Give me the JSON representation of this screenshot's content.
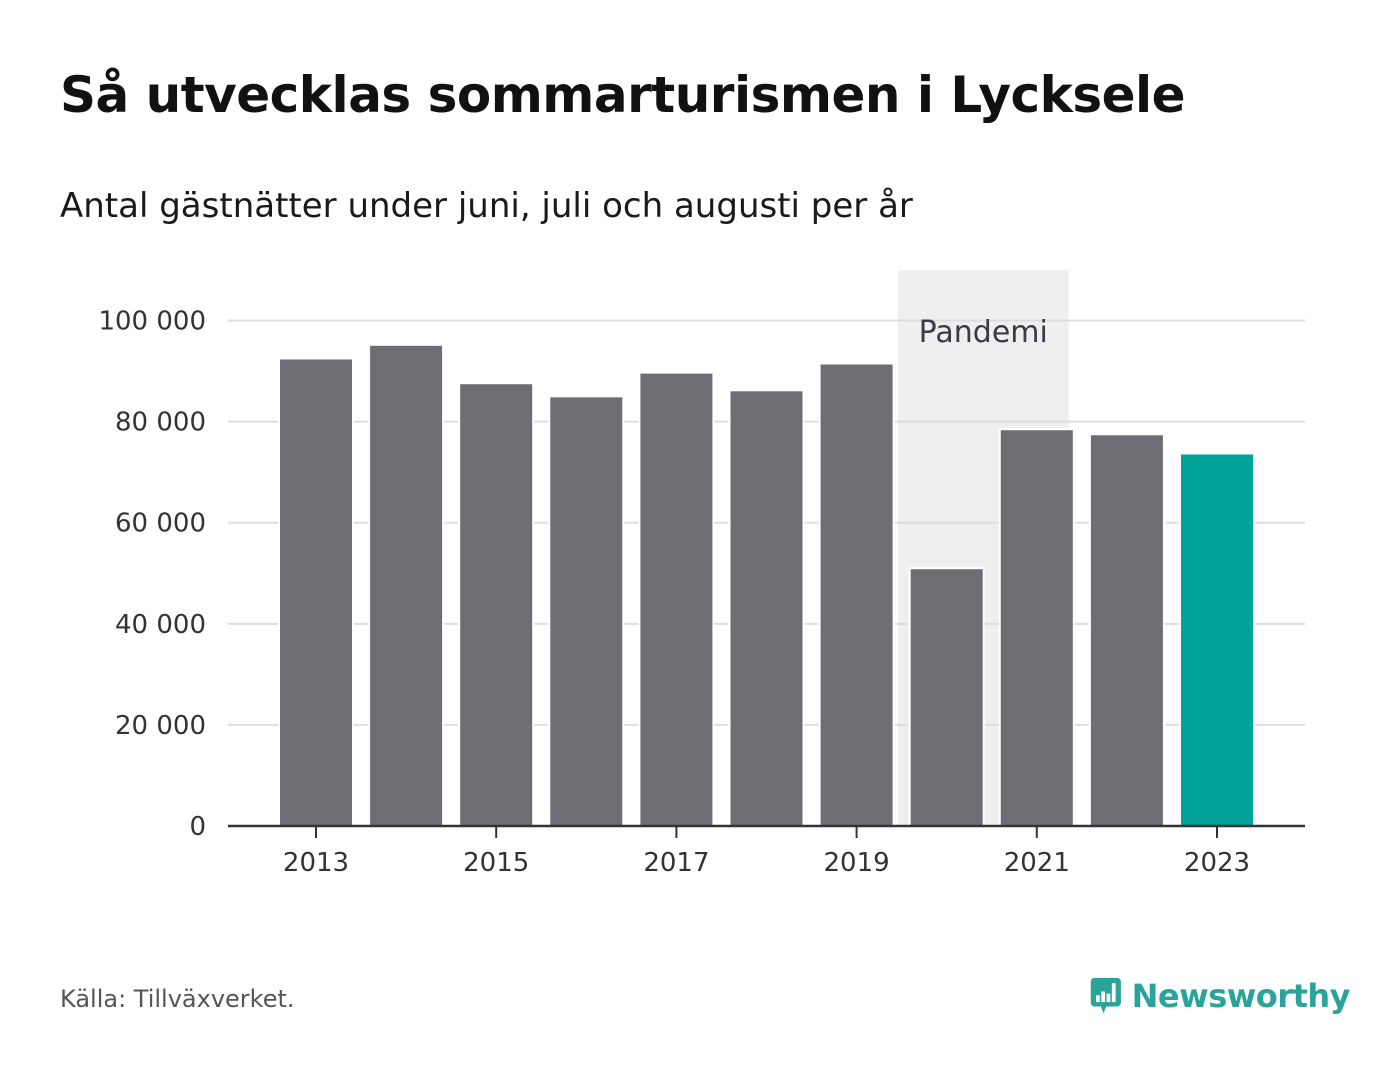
{
  "title": "Så utvecklas sommarturismen i Lycksele",
  "subtitle": "Antal gästnätter under juni, juli och augusti per år",
  "source": "Källa: Tillväxverket.",
  "brand": {
    "name": "Newsworthy",
    "icon": "newsworthy-logo-icon",
    "color": "#2aa39a"
  },
  "chart_data": {
    "type": "bar",
    "categories": [
      "2013",
      "2014",
      "2015",
      "2016",
      "2017",
      "2018",
      "2019",
      "2020",
      "2021",
      "2022",
      "2023"
    ],
    "values": [
      92500,
      95200,
      87600,
      85000,
      89700,
      86200,
      91500,
      51000,
      78500,
      77500,
      73700
    ],
    "x_tick_labels": [
      "2013",
      "2015",
      "2017",
      "2019",
      "2021",
      "2023"
    ],
    "y_ticks": [
      0,
      20000,
      40000,
      60000,
      80000,
      100000
    ],
    "y_tick_labels": [
      "0",
      "20 000",
      "40 000",
      "60 000",
      "80 000",
      "100 000"
    ],
    "ylim": [
      0,
      110000
    ],
    "grid": true,
    "annotation": {
      "label": "Pandemi",
      "category": "2020"
    },
    "colors": {
      "bar": "#6e6d74",
      "highlight": "#00a398",
      "highlight_category": "2023",
      "band": "#efefef",
      "grid": "#dddddd",
      "axis": "#333333"
    }
  }
}
